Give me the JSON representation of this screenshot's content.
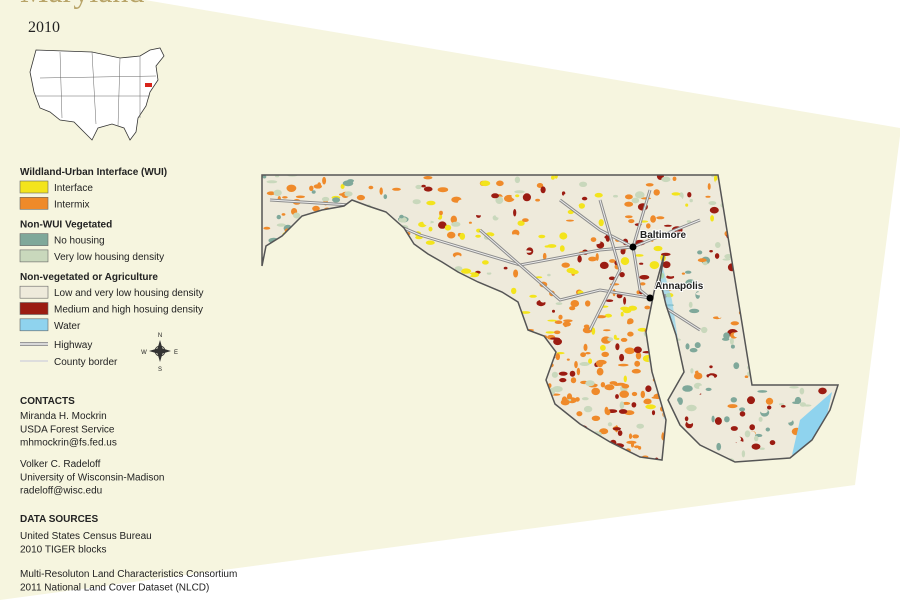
{
  "header": {
    "title": "Maryland",
    "year": "2010"
  },
  "legend": {
    "groups": [
      {
        "title": "Wildland-Urban Interface (WUI)",
        "items": [
          {
            "label": "Interface",
            "color": "#f3e41c"
          },
          {
            "label": "Intermix",
            "color": "#ef8a2a"
          }
        ]
      },
      {
        "title": "Non-WUI Vegetated",
        "items": [
          {
            "label": "No housing",
            "color": "#7fa89a"
          },
          {
            "label": "Very low housing density",
            "color": "#c9d8bc"
          }
        ]
      },
      {
        "title": "Non-vegetated or Agriculture",
        "items": [
          {
            "label": "Low and very low housing density",
            "color": "#eeeadb"
          },
          {
            "label": "Medium and high hosuing density",
            "color": "#9b1c12"
          },
          {
            "label": "Water",
            "color": "#8fd3ee"
          }
        ]
      }
    ],
    "lines": [
      {
        "label": "Highway"
      },
      {
        "label": "County border"
      }
    ]
  },
  "compass": {
    "labels": [
      "N",
      "E",
      "S",
      "W"
    ]
  },
  "contacts": {
    "title": "CONTACTS",
    "people": [
      [
        "Miranda H. Mockrin",
        "USDA Forest Service",
        "mhmockrin@fs.fed.us"
      ],
      [
        "Volker C. Radeloff",
        "University of Wisconsin-Madison",
        "radeloff@wisc.edu"
      ]
    ]
  },
  "sources": {
    "title": "DATA SOURCES",
    "entries": [
      [
        "United States Census Bureau",
        "2010 TIGER blocks"
      ],
      [
        "Multi-Resoluton Land Characteristics Consortium",
        "2011 National Land Cover Dataset (NLCD)"
      ]
    ]
  },
  "map": {
    "cities": [
      {
        "label": "Baltimore"
      },
      {
        "label": "Annapolis"
      }
    ]
  }
}
